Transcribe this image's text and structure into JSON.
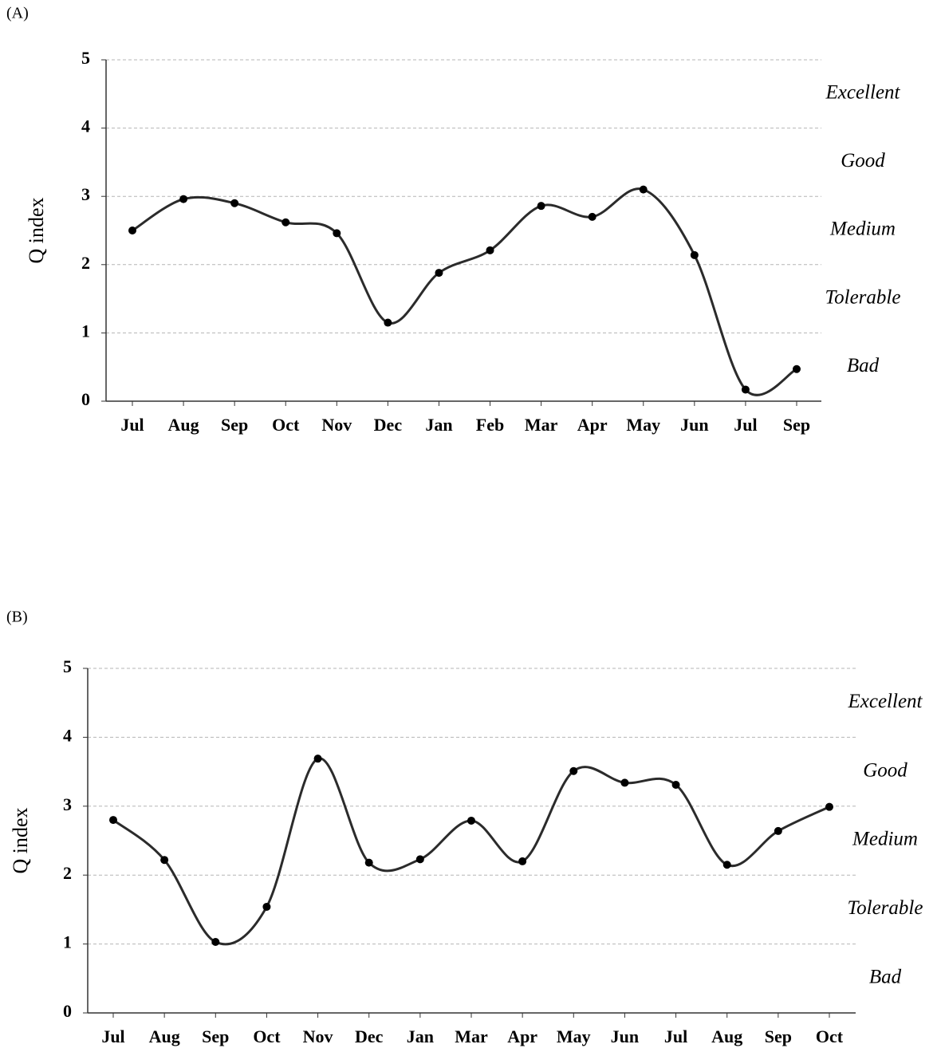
{
  "chart_data": [
    {
      "type": "line",
      "panel_label": "(A)",
      "y_label": "Q index",
      "categories": [
        "Jul",
        "Aug",
        "Sep",
        "Oct",
        "Nov",
        "Dec",
        "Jan",
        "Feb",
        "Mar",
        "Apr",
        "May",
        "Jun",
        "Jul",
        "Sep"
      ],
      "values": [
        2.5,
        2.96,
        2.9,
        2.62,
        2.46,
        1.15,
        1.88,
        2.21,
        2.86,
        2.7,
        3.1,
        2.14,
        0.17,
        0.47
      ],
      "color": "#2b2b2b",
      "ylim": [
        0,
        5
      ],
      "yticks": [
        0,
        1,
        2,
        3,
        4,
        5
      ],
      "grid": true,
      "bands": [
        "Bad",
        "Tolerable",
        "Medium",
        "Good",
        "Excellent"
      ]
    },
    {
      "type": "line",
      "panel_label": "(B)",
      "y_label": "Q index",
      "categories": [
        "Jul",
        "Aug",
        "Sep",
        "Oct",
        "Nov",
        "Dec",
        "Jan",
        "Mar",
        "Apr",
        "May",
        "Jun",
        "Jul",
        "Aug",
        "Sep",
        "Oct"
      ],
      "values": [
        2.8,
        2.22,
        1.03,
        1.54,
        3.69,
        2.18,
        2.23,
        2.79,
        2.2,
        3.51,
        3.34,
        3.31,
        2.15,
        2.64,
        2.99
      ],
      "color": "#2b2b2b",
      "ylim": [
        0,
        5
      ],
      "yticks": [
        0,
        1,
        2,
        3,
        4,
        5
      ],
      "grid": true,
      "bands": [
        "Bad",
        "Tolerable",
        "Medium",
        "Good",
        "Excellent"
      ]
    }
  ]
}
